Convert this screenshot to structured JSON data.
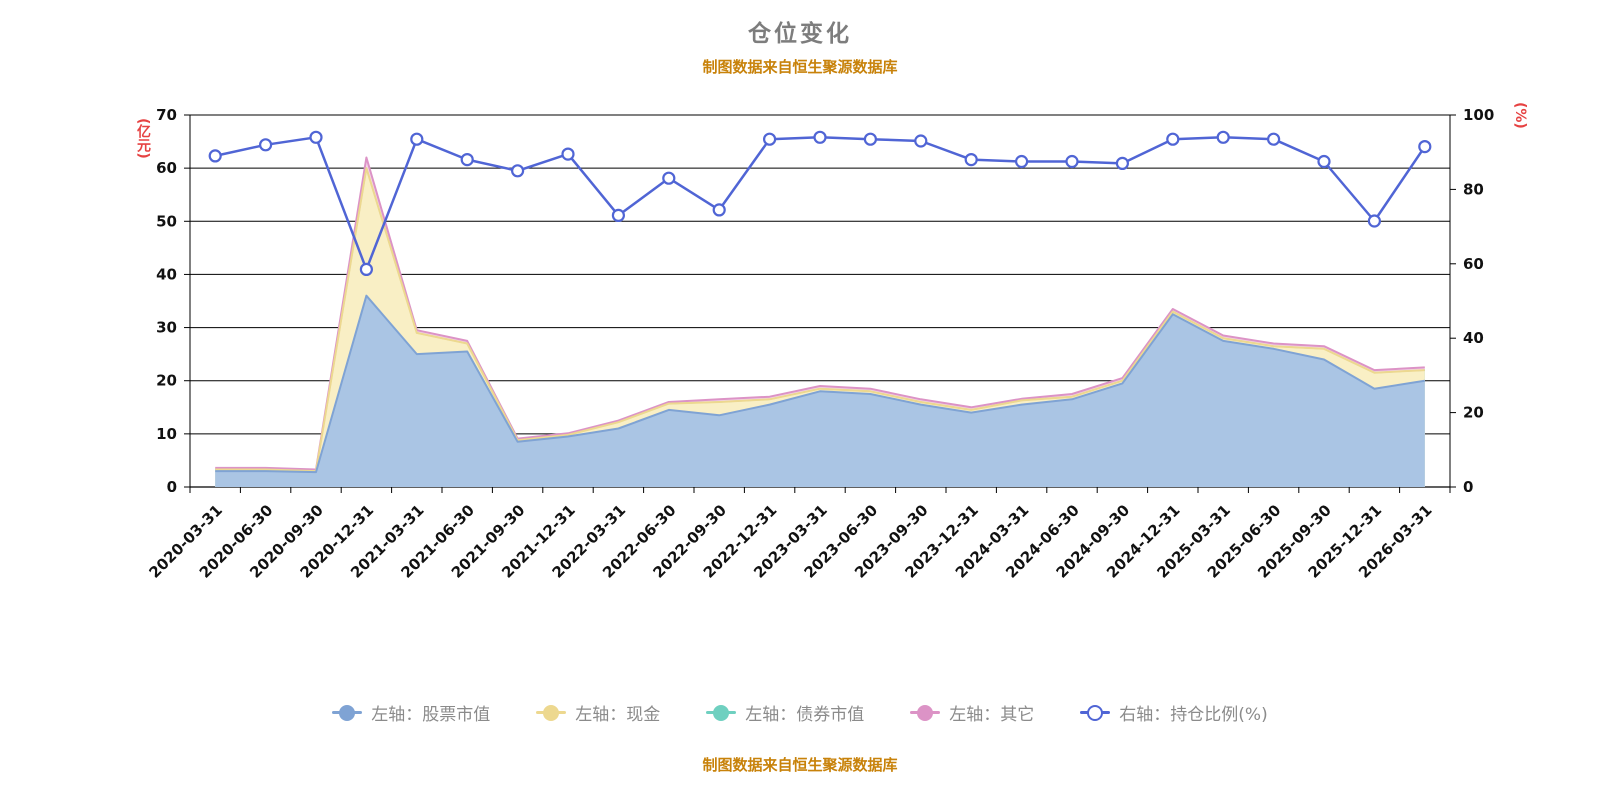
{
  "title": "仓位变化",
  "source_note": "制图数据来自恒生聚源数据库",
  "chart_data": {
    "type": "area",
    "title": "仓位变化",
    "subtitle": "制图数据来自恒生聚源数据库",
    "legend_position": "bottom",
    "grid": "horizontal",
    "left_axis": {
      "unit": "(亿元)",
      "min": 0,
      "max": 70,
      "step": 10
    },
    "right_axis": {
      "unit": "(%)",
      "min": 0,
      "max": 100,
      "step": 20
    },
    "categories": [
      "2020-03-31",
      "2020-06-30",
      "2020-09-30",
      "2020-12-31",
      "2021-03-31",
      "2021-06-30",
      "2021-09-30",
      "2021-12-31",
      "2022-03-31",
      "2022-06-30",
      "2022-09-30",
      "2022-12-31",
      "2023-03-31",
      "2023-06-30",
      "2023-09-30",
      "2023-12-31",
      "2024-03-31",
      "2024-06-30",
      "2024-09-30",
      "2024-12-31",
      "2025-03-31",
      "2025-06-30",
      "2025-09-30",
      "2025-12-31",
      "2026-03-31"
    ],
    "series": [
      {
        "key": "stock",
        "name": "左轴：股票市值",
        "axis": "left",
        "stack": true,
        "values": [
          3,
          3,
          2.8,
          36,
          25,
          25.5,
          8.5,
          9.5,
          11,
          14.5,
          13.5,
          15.5,
          18,
          17.5,
          15.5,
          14,
          15.5,
          16.5,
          19.5,
          32.5,
          27.5,
          26,
          24,
          18.5,
          20
        ]
      },
      {
        "key": "cash",
        "name": "左轴：现金",
        "axis": "left",
        "stack": true,
        "values": [
          0.3,
          0.3,
          0.2,
          24,
          4,
          1.5,
          0.3,
          0.3,
          1.2,
          1.2,
          2.5,
          1,
          0.5,
          0.5,
          0.5,
          0.5,
          0.8,
          0.5,
          0.5,
          0.5,
          0.5,
          0.5,
          2,
          3,
          2
        ]
      },
      {
        "key": "bond",
        "name": "左轴：债券市值",
        "axis": "left",
        "stack": true,
        "values": [
          0,
          0,
          0,
          0,
          0,
          0,
          0,
          0,
          0,
          0,
          0,
          0,
          0,
          0,
          0,
          0,
          0,
          0,
          0,
          0,
          0,
          0,
          0,
          0,
          0
        ]
      },
      {
        "key": "other",
        "name": "左轴：其它",
        "axis": "left",
        "stack": true,
        "values": [
          0.3,
          0.3,
          0.3,
          2,
          0.5,
          0.5,
          0.3,
          0.3,
          0.3,
          0.3,
          0.5,
          0.5,
          0.5,
          0.5,
          0.5,
          0.5,
          0.3,
          0.5,
          0.5,
          0.5,
          0.5,
          0.5,
          0.5,
          0.5,
          0.5
        ]
      },
      {
        "key": "ratio",
        "name": "右轴：持仓比例(%)",
        "axis": "right",
        "stack": false,
        "values": [
          89,
          92,
          94,
          58.5,
          93.5,
          88,
          85,
          89.5,
          73,
          83,
          74.5,
          93.5,
          94,
          93.5,
          93,
          88,
          87.5,
          87.5,
          87,
          93.5,
          94,
          93.5,
          87.5,
          71.5,
          91.5
        ]
      }
    ],
    "colors": {
      "stock": {
        "fill": "#aac5e4",
        "line": "#7fa3d4"
      },
      "cash": {
        "fill": "#f9efc5",
        "line": "#edd88f"
      },
      "bond": {
        "fill": "#92dfd2",
        "line": "#6fd0c0"
      },
      "other": {
        "fill": "#f4d4e8",
        "line": "#dc93c6"
      },
      "ratio": {
        "line": "#5065d5",
        "marker_fill": "#ffffff"
      },
      "axis_unit": "#e64242",
      "title": "#7d7d7d",
      "source": "#c8820a",
      "axis_text": "#111111"
    }
  }
}
